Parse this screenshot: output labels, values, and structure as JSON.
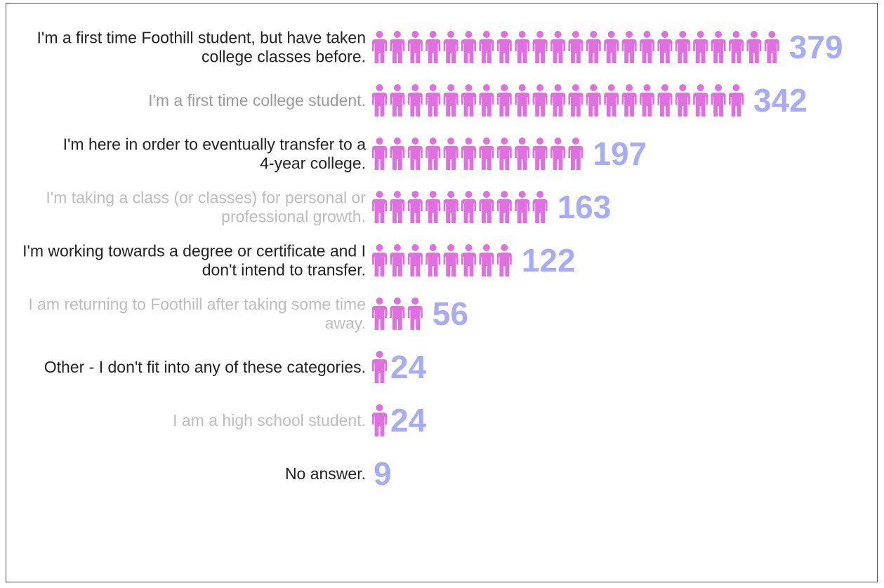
{
  "chart_data": {
    "type": "pictogram-bar",
    "categories": [
      "I'm a first time Foothill student, but have taken college classes before.",
      "I'm a first time college student.",
      "I'm here in order to eventually transfer to a 4-year college.",
      "I'm taking a class (or classes) for personal or professional growth.",
      "I'm working towards a degree or certificate and I don't intend to transfer.",
      "I am returning to Foothill after taking some time away.",
      "Other - I don't fit into any of these categories.",
      "I am a high school student.",
      "No answer."
    ],
    "label_lines": [
      [
        "I'm a first time Foothill student, but have taken",
        "college classes before."
      ],
      [
        "I'm a first time college student."
      ],
      [
        "I'm here in order to eventually transfer to a",
        "4-year college."
      ],
      [
        "I'm taking a class (or classes) for personal or",
        "professional growth."
      ],
      [
        "I'm working towards a degree or certificate and I",
        "don't intend to transfer."
      ],
      [
        "I am returning to Foothill after taking some time",
        "away."
      ],
      [
        "Other - I don't fit into any of these categories."
      ],
      [
        "I am a high school student."
      ],
      [
        "No answer."
      ]
    ],
    "values": [
      379,
      342,
      197,
      163,
      122,
      56,
      24,
      24,
      9
    ],
    "icon_counts": [
      23,
      21,
      12,
      10,
      8,
      3,
      1,
      1,
      0
    ],
    "label_colors": [
      "#222222",
      "#9a9a9a",
      "#222222",
      "#bdbdbd",
      "#222222",
      "#bdbdbd",
      "#222222",
      "#bdbdbd",
      "#222222"
    ],
    "icon_name": "person-icon",
    "icon_color": "#e070e0",
    "value_color": "#a8abf5"
  }
}
